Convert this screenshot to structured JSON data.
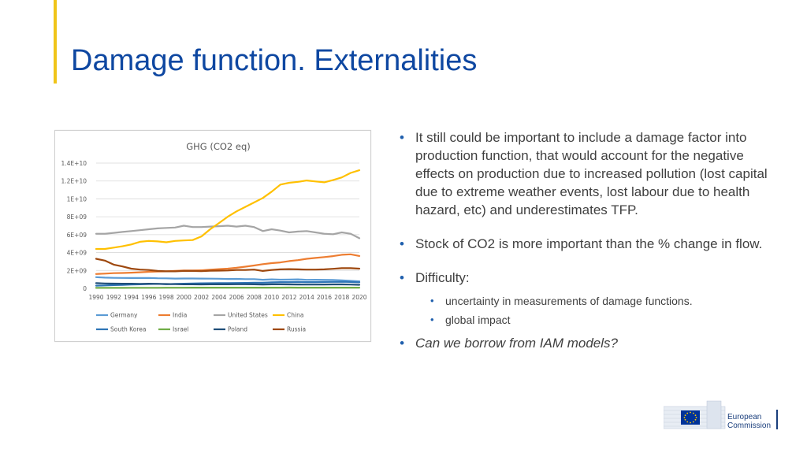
{
  "slide": {
    "title": "Damage function. Externalities"
  },
  "bullets": [
    "It still could be important to include a damage factor into production function, that would account for the negative effects on production due to increased pollution (lost capital due to extreme weather events, lost labour due to health hazard, etc) and underestimates TFP.",
    "Stock of CO2 is more important than the % change in flow.",
    "Difficulty:",
    "Can we borrow from IAM models?"
  ],
  "sub_bullets": [
    "uncertainty in measurements of damage functions.",
    "global impact"
  ],
  "logo": {
    "line1": "European",
    "line2": "Commission"
  },
  "chart_data": {
    "type": "line",
    "title": "GHG (CO2 eq)",
    "xlabel": "",
    "ylabel": "",
    "ylim": [
      0,
      14000000000
    ],
    "y_ticks": [
      "0",
      "2E+09",
      "4E+09",
      "6E+09",
      "8E+09",
      "1E+10",
      "1.2E+10",
      "1.4E+10"
    ],
    "x_ticks": [
      "1990",
      "1992",
      "1994",
      "1996",
      "1998",
      "2000",
      "2002",
      "2004",
      "2006",
      "2008",
      "2010",
      "2012",
      "2014",
      "2016",
      "2018",
      "2020"
    ],
    "grid": true,
    "legend_position": "bottom",
    "x": [
      1990,
      1991,
      1992,
      1993,
      1994,
      1995,
      1996,
      1997,
      1998,
      1999,
      2000,
      2001,
      2002,
      2003,
      2004,
      2005,
      2006,
      2007,
      2008,
      2009,
      2010,
      2011,
      2012,
      2013,
      2014,
      2015,
      2016,
      2017,
      2018,
      2019,
      2020
    ],
    "series": [
      {
        "name": "Germany",
        "color": "#5b9bd5",
        "values": [
          1250000000.0,
          1200000000.0,
          1170000000.0,
          1160000000.0,
          1150000000.0,
          1150000000.0,
          1160000000.0,
          1130000000.0,
          1120000000.0,
          1090000000.0,
          1100000000.0,
          1100000000.0,
          1090000000.0,
          1080000000.0,
          1070000000.0,
          1050000000.0,
          1060000000.0,
          1030000000.0,
          1030000000.0,
          960000000.0,
          1000000000.0,
          970000000.0,
          980000000.0,
          1000000000.0,
          950000000.0,
          960000000.0,
          950000000.0,
          930000000.0,
          890000000.0,
          840000000.0,
          780000000.0
        ]
      },
      {
        "name": "India",
        "color": "#ed7d31",
        "values": [
          1600000000.0,
          1650000000.0,
          1700000000.0,
          1720000000.0,
          1750000000.0,
          1800000000.0,
          1850000000.0,
          1880000000.0,
          1900000000.0,
          1950000000.0,
          2000000000.0,
          2000000000.0,
          2020000000.0,
          2080000000.0,
          2150000000.0,
          2200000000.0,
          2300000000.0,
          2420000000.0,
          2550000000.0,
          2700000000.0,
          2820000000.0,
          2900000000.0,
          3050000000.0,
          3150000000.0,
          3300000000.0,
          3400000000.0,
          3500000000.0,
          3600000000.0,
          3750000000.0,
          3800000000.0,
          3620000000.0
        ]
      },
      {
        "name": "United States",
        "color": "#a5a5a5",
        "values": [
          6100000000.0,
          6100000000.0,
          6200000000.0,
          6300000000.0,
          6400000000.0,
          6500000000.0,
          6600000000.0,
          6700000000.0,
          6750000000.0,
          6800000000.0,
          7000000000.0,
          6850000000.0,
          6850000000.0,
          6900000000.0,
          6950000000.0,
          7000000000.0,
          6900000000.0,
          7000000000.0,
          6850000000.0,
          6400000000.0,
          6600000000.0,
          6450000000.0,
          6250000000.0,
          6350000000.0,
          6400000000.0,
          6250000000.0,
          6100000000.0,
          6050000000.0,
          6250000000.0,
          6100000000.0,
          5600000000.0
        ]
      },
      {
        "name": "China",
        "color": "#ffc000",
        "values": [
          4400000000.0,
          4400000000.0,
          4550000000.0,
          4700000000.0,
          4900000000.0,
          5200000000.0,
          5300000000.0,
          5250000000.0,
          5150000000.0,
          5300000000.0,
          5350000000.0,
          5400000000.0,
          5800000000.0,
          6600000000.0,
          7300000000.0,
          8000000000.0,
          8600000000.0,
          9100000000.0,
          9600000000.0,
          10100000000.0,
          10800000000.0,
          11600000000.0,
          11800000000.0,
          11900000000.0,
          12050000000.0,
          11950000000.0,
          11850000000.0,
          12100000000.0,
          12400000000.0,
          12900000000.0,
          13200000000.0
        ]
      },
      {
        "name": "South Korea",
        "color": "#2e75b6",
        "values": [
          300000000.0,
          330000000.0,
          360000000.0,
          390000000.0,
          420000000.0,
          450000000.0,
          480000000.0,
          500000000.0,
          460000000.0,
          490000000.0,
          520000000.0,
          540000000.0,
          560000000.0,
          570000000.0,
          580000000.0,
          590000000.0,
          600000000.0,
          610000000.0,
          630000000.0,
          630000000.0,
          670000000.0,
          700000000.0,
          700000000.0,
          710000000.0,
          700000000.0,
          700000000.0,
          710000000.0,
          720000000.0,
          730000000.0,
          710000000.0,
          680000000.0
        ]
      },
      {
        "name": "Israel",
        "color": "#70ad47",
        "values": [
          50000000.0,
          50000000.0,
          50000000.0,
          55000000.0,
          60000000.0,
          60000000.0,
          65000000.0,
          65000000.0,
          70000000.0,
          70000000.0,
          70000000.0,
          75000000.0,
          75000000.0,
          75000000.0,
          75000000.0,
          80000000.0,
          80000000.0,
          80000000.0,
          80000000.0,
          80000000.0,
          80000000.0,
          80000000.0,
          85000000.0,
          80000000.0,
          80000000.0,
          80000000.0,
          80000000.0,
          80000000.0,
          80000000.0,
          80000000.0,
          75000000.0
        ]
      },
      {
        "name": "Poland",
        "color": "#1f4e79",
        "values": [
          580000000.0,
          550000000.0,
          530000000.0,
          520000000.0,
          520000000.0,
          500000000.0,
          520000000.0,
          500000000.0,
          480000000.0,
          470000000.0,
          450000000.0,
          450000000.0,
          440000000.0,
          450000000.0,
          450000000.0,
          450000000.0,
          460000000.0,
          460000000.0,
          450000000.0,
          430000000.0,
          450000000.0,
          450000000.0,
          440000000.0,
          430000000.0,
          420000000.0,
          420000000.0,
          430000000.0,
          440000000.0,
          440000000.0,
          420000000.0,
          400000000.0
        ]
      },
      {
        "name": "Russia",
        "color": "#9e480e",
        "values": [
          3300000000.0,
          3100000000.0,
          2650000000.0,
          2450000000.0,
          2200000000.0,
          2100000000.0,
          2050000000.0,
          1950000000.0,
          1900000000.0,
          1900000000.0,
          1950000000.0,
          1950000000.0,
          1920000000.0,
          1970000000.0,
          1980000000.0,
          2000000000.0,
          2050000000.0,
          2050000000.0,
          2100000000.0,
          1950000000.0,
          2050000000.0,
          2120000000.0,
          2150000000.0,
          2120000000.0,
          2100000000.0,
          2100000000.0,
          2120000000.0,
          2180000000.0,
          2250000000.0,
          2250000000.0,
          2200000000.0
        ]
      }
    ]
  }
}
